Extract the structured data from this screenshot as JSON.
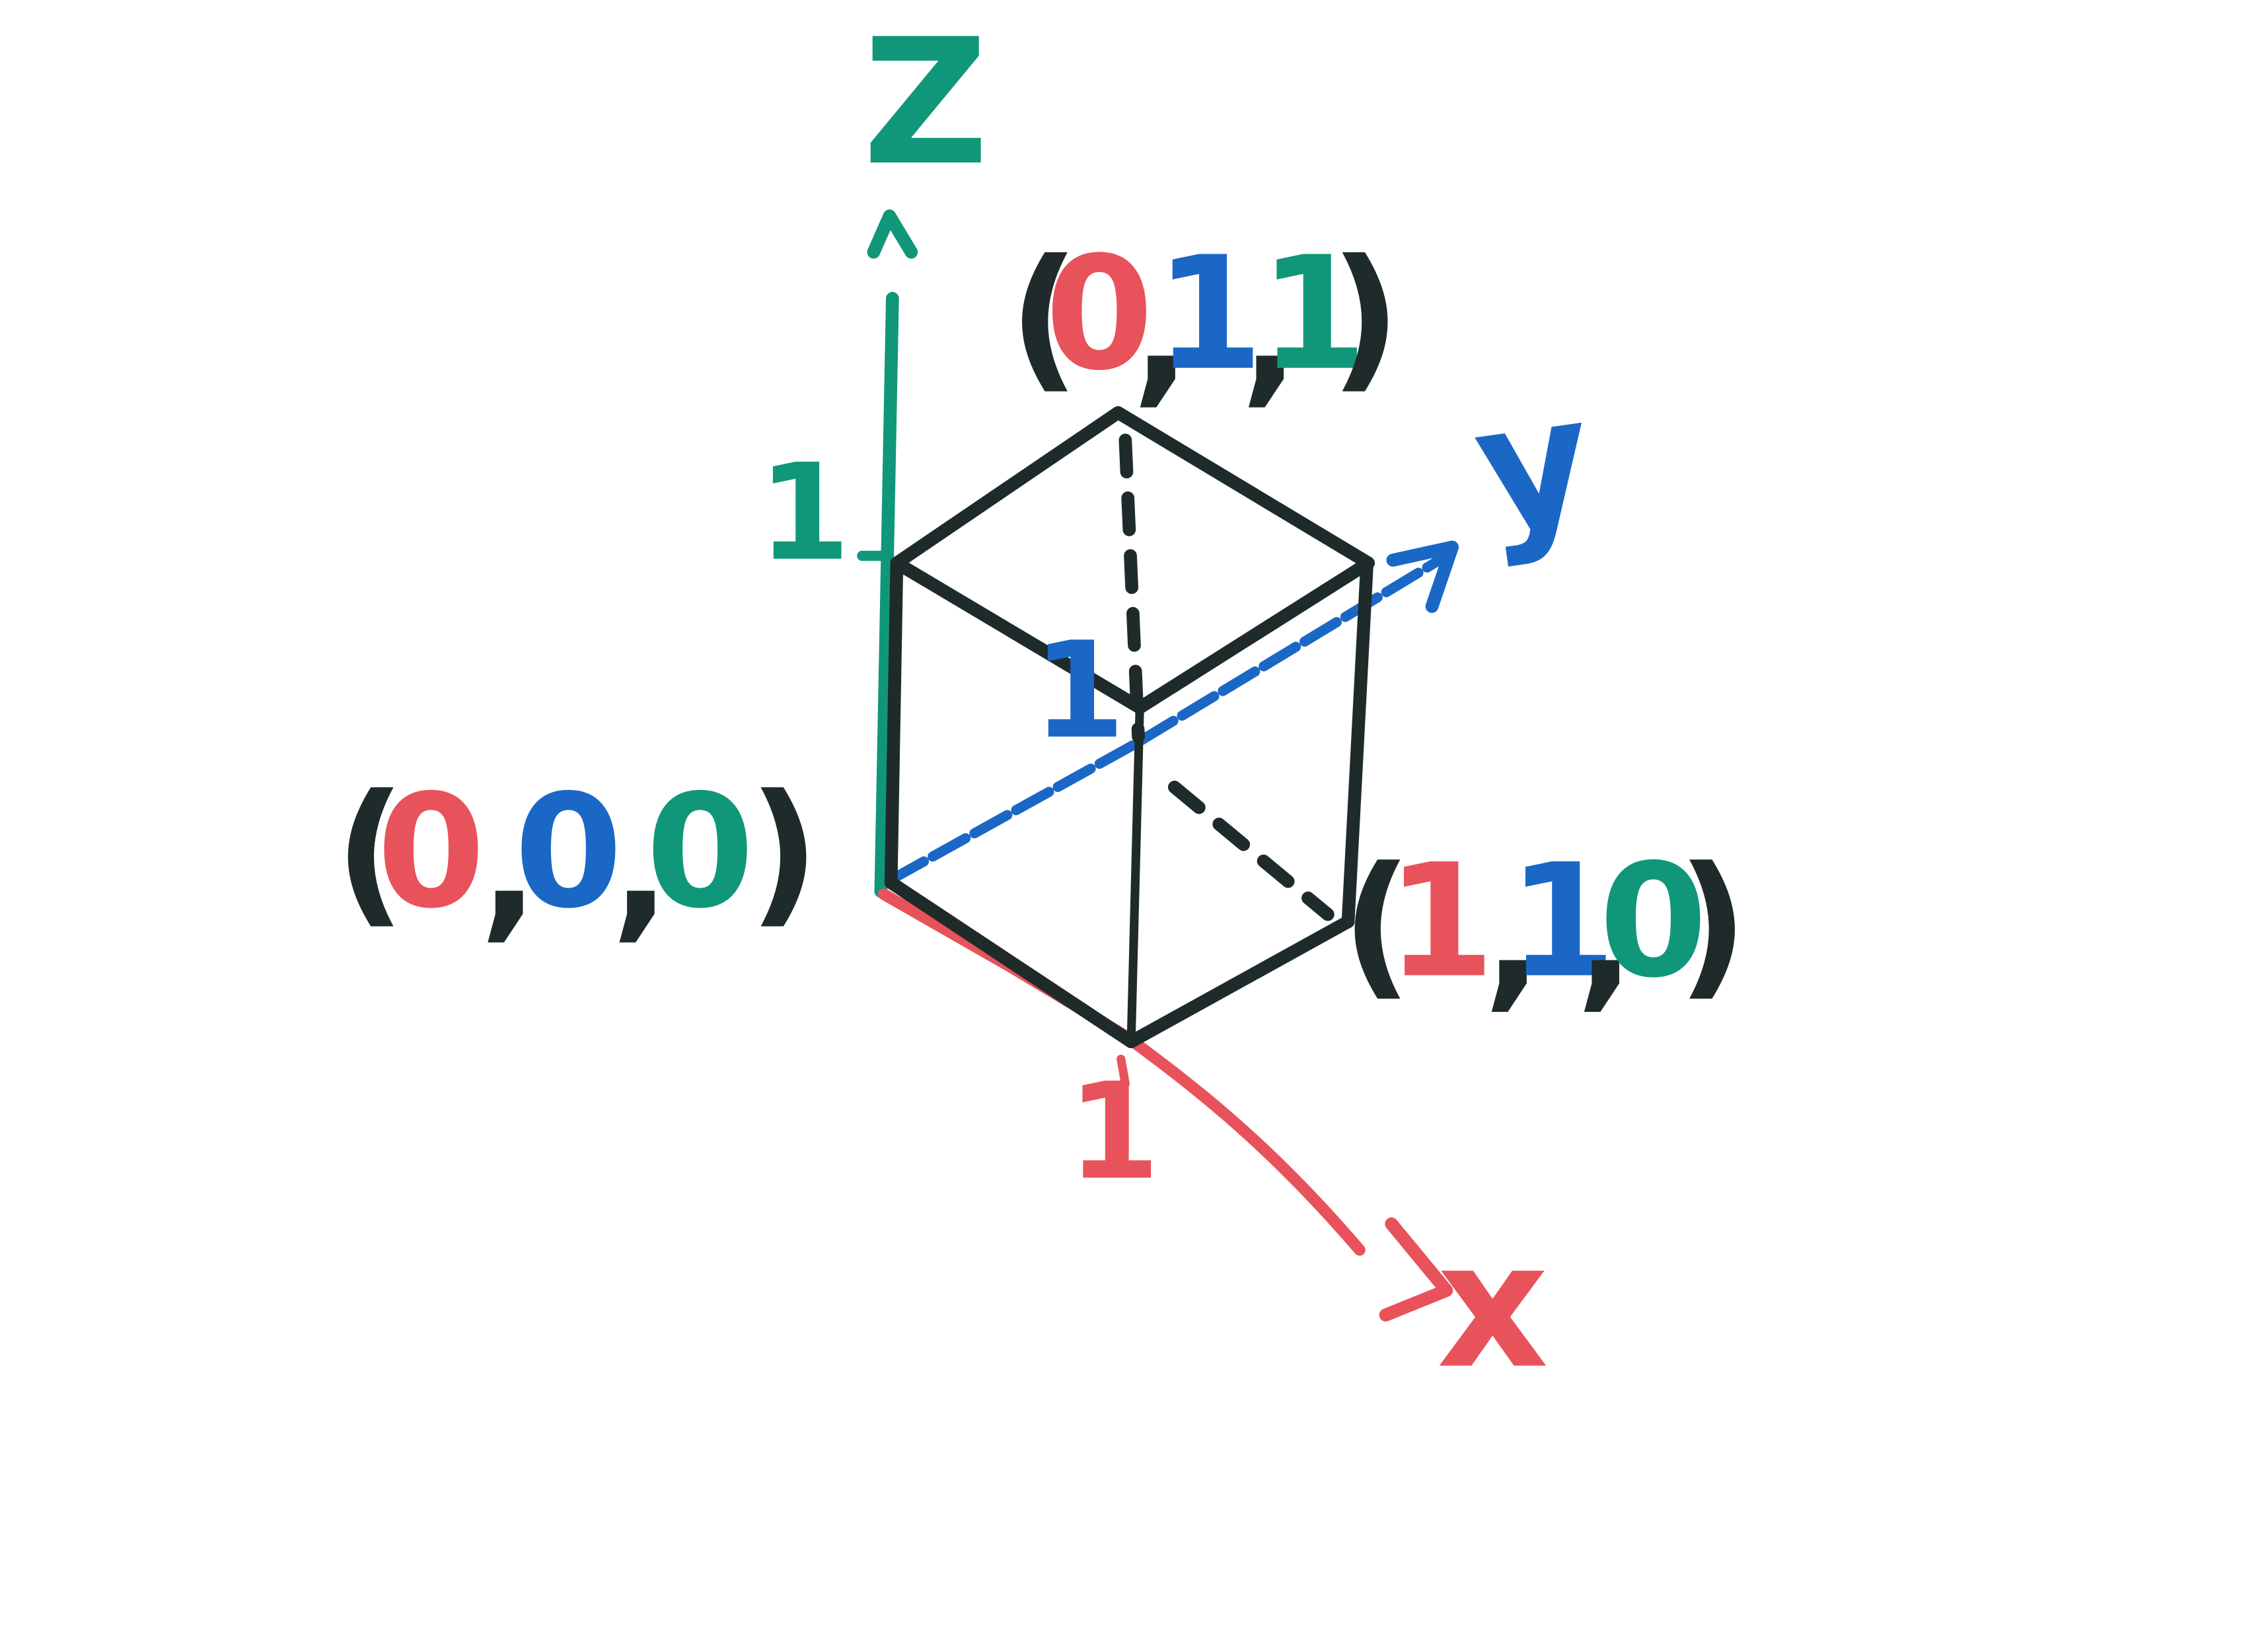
{
  "colors": {
    "x": "#e8525a",
    "y": "#1b67c6",
    "z": "#10977a",
    "ink": "#1f2b2b"
  },
  "axes": {
    "x": {
      "name": "x",
      "tick": "1"
    },
    "y": {
      "name": "y",
      "tick": "1"
    },
    "z": {
      "name": "z",
      "tick": "1"
    }
  },
  "points": {
    "origin": {
      "x": "0",
      "y": "0",
      "z": "0"
    },
    "top": {
      "x": "0",
      "y": "1",
      "z": "1"
    },
    "right": {
      "x": "1",
      "y": "1",
      "z": "0"
    }
  },
  "punct": {
    "open": "(",
    "close": ")",
    "comma": ","
  }
}
